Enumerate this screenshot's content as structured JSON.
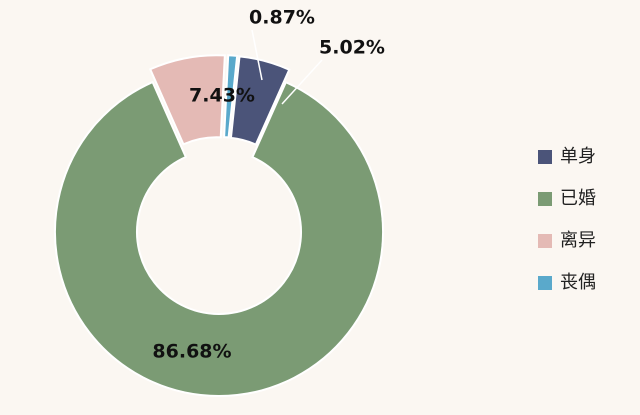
{
  "chart_data": {
    "type": "donut",
    "categories": [
      "单身",
      "已婚",
      "离异",
      "丧偶"
    ],
    "values": [
      5.02,
      86.68,
      7.43,
      0.87
    ],
    "value_labels": [
      "5.02%",
      "86.68%",
      "7.43%",
      "0.87%"
    ],
    "colors": [
      "#4b5479",
      "#7b9b74",
      "#e4bab5",
      "#5aa9cb"
    ],
    "legend": "right"
  }
}
